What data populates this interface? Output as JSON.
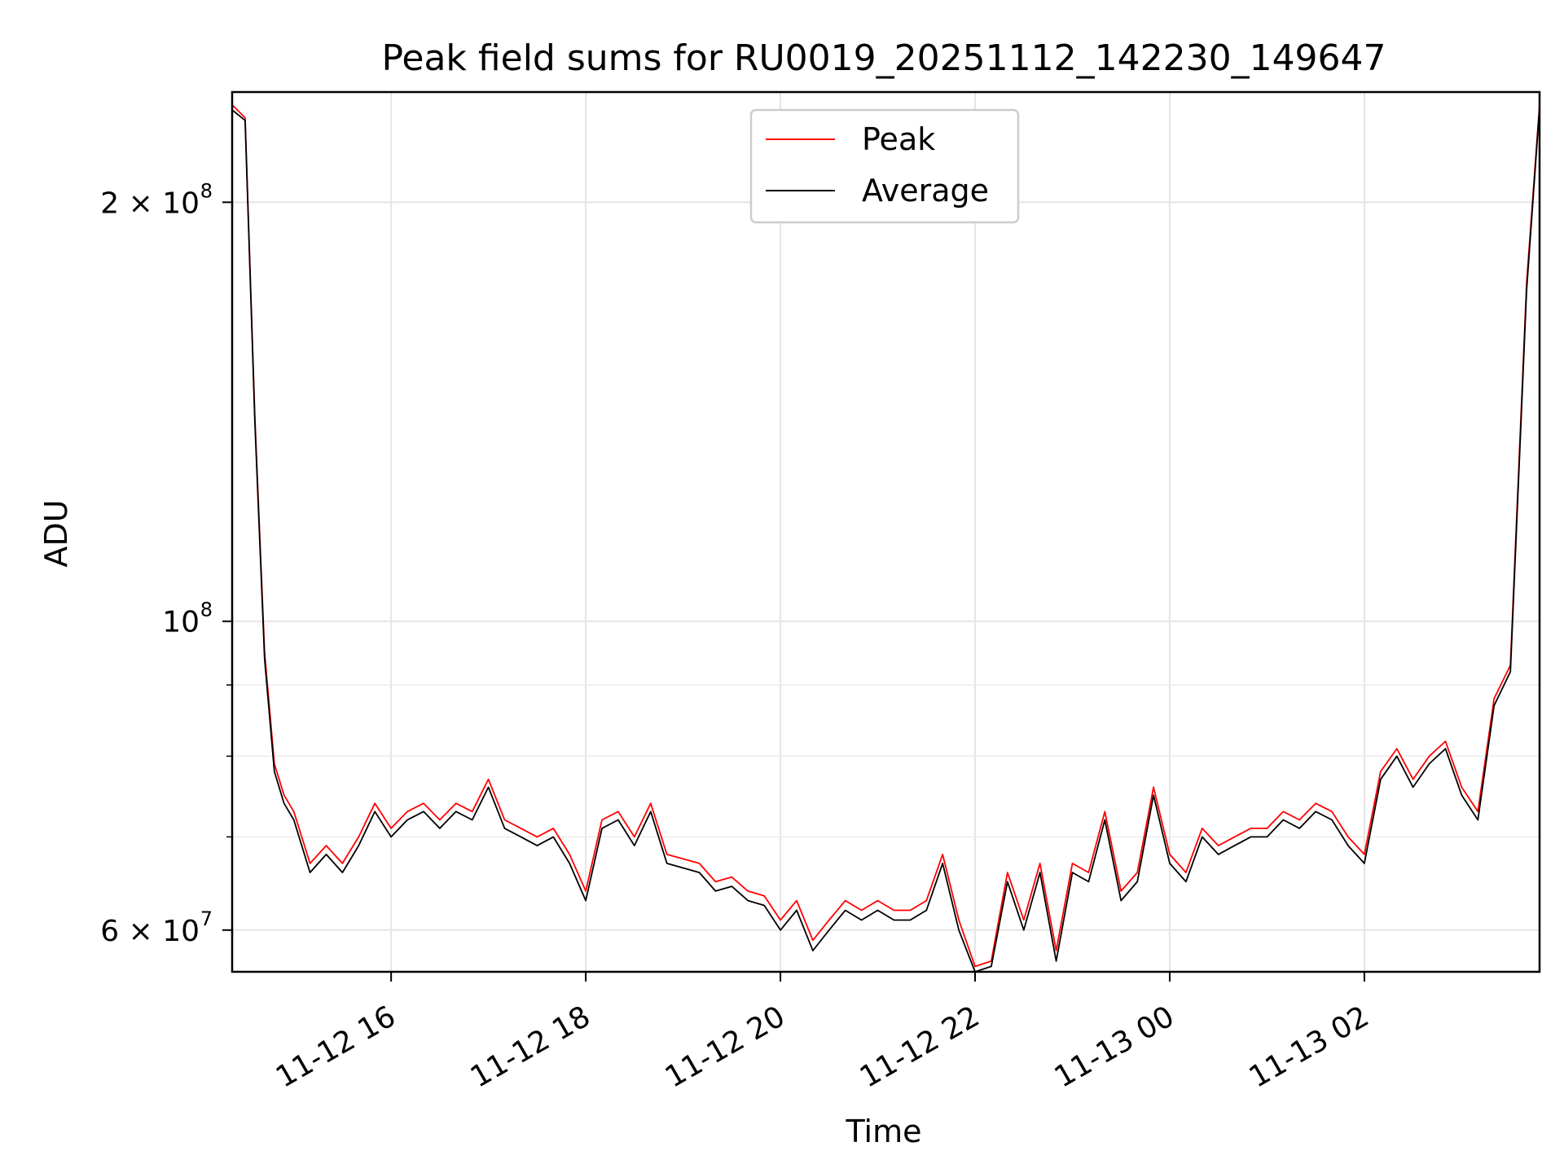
{
  "chart_data": {
    "type": "line",
    "title": "Peak field sums for RU0019_20251112_142230_149647",
    "xlabel": "Time",
    "ylabel": "ADU",
    "yscale": "log",
    "ylim": [
      56000000,
      240000000
    ],
    "xlim": [
      "2025-11-12 14:22",
      "2025-11-13 03:48"
    ],
    "grid": true,
    "legend_position": "top-center",
    "x_ticks": [
      {
        "value": "2025-11-12 16:00",
        "label": "11-12 16"
      },
      {
        "value": "2025-11-12 18:00",
        "label": "11-12 18"
      },
      {
        "value": "2025-11-12 20:00",
        "label": "11-12 20"
      },
      {
        "value": "2025-11-12 22:00",
        "label": "11-12 22"
      },
      {
        "value": "2025-11-13 00:00",
        "label": "11-13 00"
      },
      {
        "value": "2025-11-13 02:00",
        "label": "11-13 02"
      }
    ],
    "y_ticks": [
      {
        "value": 60000000,
        "label": "6 × 10",
        "exp": "7"
      },
      {
        "value": 100000000,
        "label": "10",
        "exp": "8"
      },
      {
        "value": 200000000,
        "label": "2 × 10",
        "exp": "8"
      }
    ],
    "y_minor_ticks": [
      70000000,
      80000000,
      90000000
    ],
    "x": [
      "2025-11-12 14:22",
      "2025-11-12 14:30",
      "2025-11-12 14:36",
      "2025-11-12 14:42",
      "2025-11-12 14:48",
      "2025-11-12 14:54",
      "2025-11-12 15:00",
      "2025-11-12 15:10",
      "2025-11-12 15:20",
      "2025-11-12 15:30",
      "2025-11-12 15:40",
      "2025-11-12 15:50",
      "2025-11-12 16:00",
      "2025-11-12 16:10",
      "2025-11-12 16:20",
      "2025-11-12 16:30",
      "2025-11-12 16:40",
      "2025-11-12 16:50",
      "2025-11-12 17:00",
      "2025-11-12 17:10",
      "2025-11-12 17:20",
      "2025-11-12 17:30",
      "2025-11-12 17:40",
      "2025-11-12 17:50",
      "2025-11-12 18:00",
      "2025-11-12 18:10",
      "2025-11-12 18:20",
      "2025-11-12 18:30",
      "2025-11-12 18:40",
      "2025-11-12 18:50",
      "2025-11-12 19:00",
      "2025-11-12 19:10",
      "2025-11-12 19:20",
      "2025-11-12 19:30",
      "2025-11-12 19:40",
      "2025-11-12 19:50",
      "2025-11-12 20:00",
      "2025-11-12 20:10",
      "2025-11-12 20:20",
      "2025-11-12 20:30",
      "2025-11-12 20:40",
      "2025-11-12 20:50",
      "2025-11-12 21:00",
      "2025-11-12 21:10",
      "2025-11-12 21:20",
      "2025-11-12 21:30",
      "2025-11-12 21:40",
      "2025-11-12 21:50",
      "2025-11-12 22:00",
      "2025-11-12 22:10",
      "2025-11-12 22:20",
      "2025-11-12 22:30",
      "2025-11-12 22:40",
      "2025-11-12 22:50",
      "2025-11-12 23:00",
      "2025-11-12 23:10",
      "2025-11-12 23:20",
      "2025-11-12 23:30",
      "2025-11-12 23:40",
      "2025-11-12 23:50",
      "2025-11-13 00:00",
      "2025-11-13 00:10",
      "2025-11-13 00:20",
      "2025-11-13 00:30",
      "2025-11-13 00:40",
      "2025-11-13 00:50",
      "2025-11-13 01:00",
      "2025-11-13 01:10",
      "2025-11-13 01:20",
      "2025-11-13 01:30",
      "2025-11-13 01:40",
      "2025-11-13 01:50",
      "2025-11-13 02:00",
      "2025-11-13 02:10",
      "2025-11-13 02:20",
      "2025-11-13 02:30",
      "2025-11-13 02:40",
      "2025-11-13 02:50",
      "2025-11-13 03:00",
      "2025-11-13 03:10",
      "2025-11-13 03:20",
      "2025-11-13 03:30",
      "2025-11-13 03:40",
      "2025-11-13 03:48"
    ],
    "series": [
      {
        "name": "Peak",
        "color": "#ff0000",
        "values": [
          235000000,
          230000000,
          140000000,
          95000000,
          79000000,
          75000000,
          73000000,
          67000000,
          69000000,
          67000000,
          70000000,
          74000000,
          71000000,
          73000000,
          74000000,
          72000000,
          74000000,
          73000000,
          77000000,
          72000000,
          71000000,
          70000000,
          71000000,
          68000000,
          64000000,
          72000000,
          73000000,
          70000000,
          74000000,
          68000000,
          67500000,
          67000000,
          65000000,
          65500000,
          64000000,
          63500000,
          61000000,
          63000000,
          59000000,
          61000000,
          63000000,
          62000000,
          63000000,
          62000000,
          62000000,
          63000000,
          68000000,
          61000000,
          56500000,
          57000000,
          66000000,
          61000000,
          67000000,
          58000000,
          67000000,
          66000000,
          73000000,
          64000000,
          66000000,
          76000000,
          68000000,
          66000000,
          71000000,
          69000000,
          70000000,
          71000000,
          71000000,
          73000000,
          72000000,
          74000000,
          73000000,
          70000000,
          68000000,
          78000000,
          81000000,
          77000000,
          80000000,
          82000000,
          76000000,
          73000000,
          88000000,
          93000000,
          175000000,
          235000000
        ]
      },
      {
        "name": "Average",
        "color": "#000000",
        "values": [
          233000000,
          229000000,
          139000000,
          94000000,
          78000000,
          74000000,
          72000000,
          66000000,
          68000000,
          66000000,
          69000000,
          73000000,
          70000000,
          72000000,
          73000000,
          71000000,
          73000000,
          72000000,
          76000000,
          71000000,
          70000000,
          69000000,
          70000000,
          67000000,
          63000000,
          71000000,
          72000000,
          69000000,
          73000000,
          67000000,
          66500000,
          66000000,
          64000000,
          64500000,
          63000000,
          62500000,
          60000000,
          62000000,
          58000000,
          60000000,
          62000000,
          61000000,
          62000000,
          61000000,
          61000000,
          62000000,
          67000000,
          60000000,
          56000000,
          56500000,
          65000000,
          60000000,
          66000000,
          57000000,
          66000000,
          65000000,
          72000000,
          63000000,
          65000000,
          75000000,
          67000000,
          65000000,
          70000000,
          68000000,
          69000000,
          70000000,
          70000000,
          72000000,
          71000000,
          73000000,
          72000000,
          69000000,
          67000000,
          77000000,
          80000000,
          76000000,
          79000000,
          81000000,
          75000000,
          72000000,
          87000000,
          92000000,
          173000000,
          234000000
        ]
      }
    ]
  }
}
